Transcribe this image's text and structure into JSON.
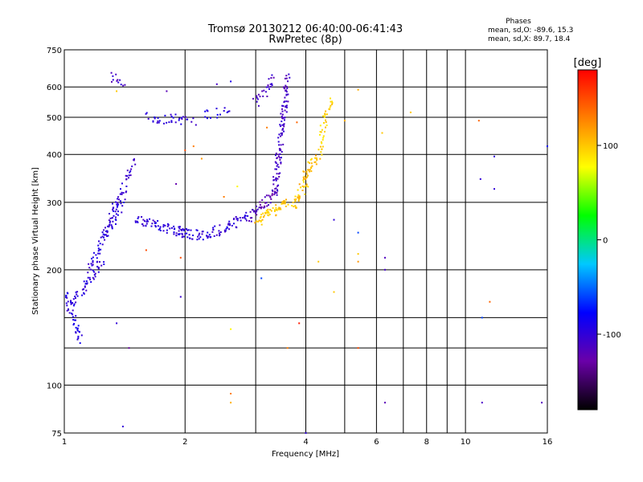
{
  "chart_data": {
    "type": "scatter",
    "title": "Tromsø 20130212 06:40:00-06:41:43",
    "subtitle": "RwPretec (8p)",
    "xlabel": "Frequency [MHz]",
    "ylabel": "Stationary phase Virtual Height [km]",
    "x_scale": "log",
    "y_scale": "log",
    "xlim": [
      1,
      16
    ],
    "ylim": [
      75,
      750
    ],
    "x_ticks": [
      1,
      2,
      4,
      6,
      8,
      10,
      16
    ],
    "x_minor_gridlines": [
      3,
      5,
      7,
      9
    ],
    "y_ticks": [
      75,
      100,
      200,
      300,
      400,
      500,
      600,
      750
    ],
    "y_minor_gridlines": [
      125,
      150
    ],
    "grid": true,
    "stats": {
      "title": "Phases",
      "line_o": "mean, sd,O: -89.6, 15.3",
      "line_x": "mean, sd,X:  89.7, 18.4"
    },
    "colorbar": {
      "unit": "[deg]",
      "min": -180,
      "max": 180,
      "ticks": [
        100,
        0,
        -100
      ],
      "colormap": "rainbow",
      "colors": [
        "#000000",
        "#6a00a8",
        "#0000ff",
        "#00c8ff",
        "#00ff00",
        "#ffff00",
        "#ff8000",
        "#ff0000"
      ]
    },
    "series": [
      {
        "segments": [
          {
            "x": [
              1.0,
              1.1
            ],
            "y": [
              175,
              130
            ],
            "phase": -95,
            "n": 40
          },
          {
            "x": [
              1.03,
              1.25
            ],
            "y": [
              160,
              210
            ],
            "phase": -100,
            "n": 50
          },
          {
            "x": [
              1.15,
              1.4
            ],
            "y": [
              200,
              300
            ],
            "phase": -98,
            "n": 60
          },
          {
            "x": [
              1.25,
              1.5
            ],
            "y": [
              240,
              390
            ],
            "phase": -102,
            "n": 55
          },
          {
            "x": [
              1.5,
              2.0
            ],
            "y": [
              270,
              250
            ],
            "phase": -100,
            "n": 60
          },
          {
            "x": [
              1.9,
              2.3
            ],
            "y": [
              250,
              245
            ],
            "phase": -98,
            "n": 40
          },
          {
            "x": [
              2.3,
              2.9
            ],
            "y": [
              248,
              275
            ],
            "phase": -100,
            "n": 50
          },
          {
            "x": [
              2.9,
              3.4
            ],
            "y": [
              275,
              320
            ],
            "phase": -118,
            "n": 45
          },
          {
            "x": [
              3.35,
              3.6
            ],
            "y": [
              320,
              640
            ],
            "phase": -110,
            "n": 110
          },
          {
            "x": [
              1.6,
              2.1
            ],
            "y": [
              500,
              490
            ],
            "phase": -100,
            "n": 35
          },
          {
            "x": [
              2.2,
              2.6
            ],
            "y": [
              505,
              525
            ],
            "phase": -95,
            "n": 15
          },
          {
            "x": [
              3.0,
              3.35
            ],
            "y": [
              545,
              630
            ],
            "phase": -110,
            "n": 25
          },
          {
            "x": [
              1.3,
              1.4
            ],
            "y": [
              640,
              605
            ],
            "phase": -110,
            "n": 12
          },
          {
            "x": [
              3.0,
              3.6
            ],
            "y": [
              265,
              300
            ],
            "phase": 100,
            "n": 55
          },
          {
            "x": [
              3.7,
              4.0
            ],
            "y": [
              290,
              335
            ],
            "phase": 100,
            "n": 35
          },
          {
            "x": [
              3.9,
              4.3
            ],
            "y": [
              340,
              400
            ],
            "phase": 105,
            "n": 35
          },
          {
            "x": [
              4.3,
              4.6
            ],
            "y": [
              400,
              570
            ],
            "phase": 95,
            "n": 40
          }
        ],
        "isolated": [
          [
            1.35,
            585,
            100
          ],
          [
            1.35,
            145,
            -100
          ],
          [
            1.4,
            78,
            -100
          ],
          [
            1.45,
            125,
            -130
          ],
          [
            1.6,
            225,
            150
          ],
          [
            1.8,
            585,
            -120
          ],
          [
            1.9,
            335,
            -125
          ],
          [
            1.95,
            215,
            150
          ],
          [
            1.95,
            170,
            -105
          ],
          [
            2.0,
            410,
            150
          ],
          [
            2.1,
            420,
            130
          ],
          [
            2.2,
            390,
            120
          ],
          [
            2.4,
            610,
            -110
          ],
          [
            2.5,
            310,
            130
          ],
          [
            2.6,
            620,
            -90
          ],
          [
            2.6,
            140,
            80
          ],
          [
            2.6,
            95,
            130
          ],
          [
            2.6,
            90,
            110
          ],
          [
            2.7,
            330,
            80
          ],
          [
            3.1,
            190,
            -60
          ],
          [
            3.2,
            470,
            130
          ],
          [
            3.6,
            125,
            130
          ],
          [
            3.8,
            485,
            140
          ],
          [
            3.85,
            145,
            170
          ],
          [
            4.0,
            75,
            -100
          ],
          [
            4.3,
            210,
            100
          ],
          [
            4.7,
            175,
            100
          ],
          [
            4.7,
            270,
            -100
          ],
          [
            5.0,
            490,
            110
          ],
          [
            5.4,
            250,
            -60
          ],
          [
            5.4,
            210,
            120
          ],
          [
            5.4,
            220,
            100
          ],
          [
            5.4,
            125,
            150
          ],
          [
            5.4,
            590,
            110
          ],
          [
            6.2,
            455,
            100
          ],
          [
            6.3,
            215,
            -115
          ],
          [
            6.3,
            200,
            -110
          ],
          [
            6.3,
            90,
            -120
          ],
          [
            7.3,
            515,
            100
          ],
          [
            10.8,
            490,
            140
          ],
          [
            10.9,
            345,
            -100
          ],
          [
            11.0,
            90,
            -110
          ],
          [
            11.0,
            150,
            -60
          ],
          [
            11.5,
            165,
            140
          ],
          [
            11.8,
            395,
            -100
          ],
          [
            11.8,
            325,
            -100
          ],
          [
            15.5,
            90,
            -115
          ],
          [
            16.0,
            420,
            -80
          ]
        ]
      }
    ]
  }
}
